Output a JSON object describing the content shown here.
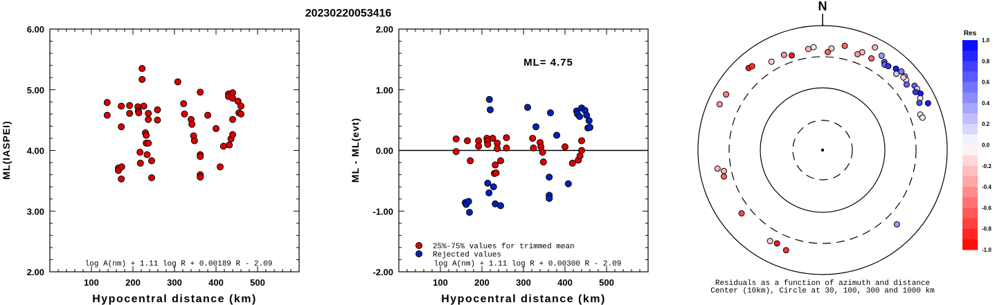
{
  "title": "20230220053416",
  "chart_data": [
    {
      "type": "scatter",
      "id": "left",
      "xlabel": "Hypocentral distance (km)",
      "ylabel": "ML(IASPEI)",
      "xlim": [
        0,
        600
      ],
      "ylim": [
        2.0,
        6.0
      ],
      "xticks": [
        "100",
        "200",
        "300",
        "400",
        "500"
      ],
      "yticks": [
        "2.00",
        "3.00",
        "4.00",
        "5.00",
        "6.00"
      ],
      "formula": "log A(nm) + 1.11 log R + 0.00189 R - 2.09",
      "series": [
        {
          "color": "#dd0000",
          "points": [
            [
              138,
              4.79
            ],
            [
              138,
              4.58
            ],
            [
              165,
              3.71
            ],
            [
              165,
              3.67
            ],
            [
              172,
              4.73
            ],
            [
              172,
              4.39
            ],
            [
              173,
              3.73
            ],
            [
              172,
              3.53
            ],
            [
              192,
              4.74
            ],
            [
              192,
              4.61
            ],
            [
              212,
              4.72
            ],
            [
              213,
              4.65
            ],
            [
              214,
              4.62
            ],
            [
              217,
              3.97
            ],
            [
              218,
              3.79
            ],
            [
              222,
              5.35
            ],
            [
              222,
              5.17
            ],
            [
              226,
              4.73
            ],
            [
              230,
              4.29
            ],
            [
              232,
              4.25
            ],
            [
              232,
              4.12
            ],
            [
              234,
              3.93
            ],
            [
              237,
              4.61
            ],
            [
              237,
              4.51
            ],
            [
              237,
              4.12
            ],
            [
              245,
              3.83
            ],
            [
              245,
              3.55
            ],
            [
              259,
              4.67
            ],
            [
              259,
              4.5
            ],
            [
              308,
              5.13
            ],
            [
              322,
              4.77
            ],
            [
              324,
              4.6
            ],
            [
              340,
              4.51
            ],
            [
              342,
              4.43
            ],
            [
              346,
              4.24
            ],
            [
              348,
              4.16
            ],
            [
              362,
              4.96
            ],
            [
              362,
              3.93
            ],
            [
              362,
              3.9
            ],
            [
              362,
              3.6
            ],
            [
              362,
              3.56
            ],
            [
              380,
              4.58
            ],
            [
              400,
              4.36
            ],
            [
              410,
              3.73
            ],
            [
              418,
              4.07
            ],
            [
              430,
              4.93
            ],
            [
              430,
              4.89
            ],
            [
              432,
              4.09
            ],
            [
              436,
              4.19
            ],
            [
              440,
              4.95
            ],
            [
              440,
              4.86
            ],
            [
              440,
              4.26
            ],
            [
              440,
              4.51
            ],
            [
              453,
              4.81
            ],
            [
              455,
              4.62
            ],
            [
              460,
              4.73
            ],
            [
              460,
              4.6
            ]
          ]
        }
      ]
    },
    {
      "type": "scatter",
      "id": "middle",
      "xlabel": "Hypocentral distance (km)",
      "ylabel": "ML - ML(evt)",
      "xlim": [
        0,
        600
      ],
      "ylim": [
        -2.0,
        2.0
      ],
      "xticks": [
        "100",
        "200",
        "300",
        "400",
        "500"
      ],
      "yticks": [
        "-2.00",
        "-1.00",
        "0.00",
        "1.00",
        "2.00"
      ],
      "annotation": "ML= 4.75",
      "formula": "log A(nm) + 1.11 log R + 0.00300 R - 2.09",
      "legend": [
        "25%-75% values for trimmed mean",
        "Rejected values"
      ],
      "series": [
        {
          "name": "25%-75% values for trimmed mean",
          "color": "#dd0000",
          "points": [
            [
              138,
              0.19
            ],
            [
              138,
              -0.02
            ],
            [
              165,
              0.16
            ],
            [
              172,
              -0.17
            ],
            [
              192,
              0.16
            ],
            [
              192,
              0.07
            ],
            [
              212,
              0.2
            ],
            [
              213,
              0.15
            ],
            [
              214,
              0.1
            ],
            [
              226,
              0.2
            ],
            [
              230,
              -0.38
            ],
            [
              232,
              -0.24
            ],
            [
              234,
              -0.37
            ],
            [
              237,
              0.12
            ],
            [
              237,
              0.03
            ],
            [
              245,
              -0.17
            ],
            [
              259,
              0.21
            ],
            [
              259,
              0.04
            ],
            [
              322,
              0.2
            ],
            [
              324,
              0.04
            ],
            [
              340,
              0.13
            ],
            [
              342,
              0.06
            ],
            [
              346,
              -0.03
            ],
            [
              348,
              -0.19
            ],
            [
              400,
              0.06
            ],
            [
              418,
              -0.21
            ],
            [
              432,
              -0.16
            ],
            [
              436,
              -0.09
            ],
            [
              440,
              0.16
            ],
            [
              440,
              0.0
            ]
          ]
        },
        {
          "name": "Rejected values",
          "color": "#0022bb",
          "points": [
            [
              160,
              -0.86
            ],
            [
              162,
              -0.89
            ],
            [
              168,
              -0.84
            ],
            [
              170,
              -1.02
            ],
            [
              214,
              -0.54
            ],
            [
              217,
              -0.7
            ],
            [
              218,
              0.84
            ],
            [
              220,
              0.67
            ],
            [
              228,
              -0.6
            ],
            [
              232,
              -0.88
            ],
            [
              245,
              -0.91
            ],
            [
              310,
              0.71
            ],
            [
              330,
              0.39
            ],
            [
              362,
              -0.44
            ],
            [
              362,
              -0.74
            ],
            [
              362,
              -0.79
            ],
            [
              365,
              0.62
            ],
            [
              380,
              0.25
            ],
            [
              408,
              -0.55
            ],
            [
              428,
              0.65
            ],
            [
              430,
              0.6
            ],
            [
              435,
              0.56
            ],
            [
              440,
              0.7
            ],
            [
              448,
              0.66
            ],
            [
              452,
              0.58
            ],
            [
              455,
              0.37
            ],
            [
              458,
              0.49
            ],
            [
              460,
              0.38
            ]
          ]
        }
      ]
    },
    {
      "type": "polar-scatter",
      "id": "azimuth",
      "north_label": "N",
      "caption_line1": "Residuals as a function of azimuth and distance",
      "caption_line2": "Center (10km), Circle at 30, 100, 300 and 1000 km",
      "colorbar_title": "Res",
      "colorbar_ticks": [
        "1.0",
        "0.8",
        "0.6",
        "0.4",
        "0.2",
        "0.0",
        "-0.2",
        "-0.4",
        "-0.6",
        "-0.8",
        "-1.0"
      ],
      "points_az_dist_res": [
        [
          12,
          500,
          -0.6
        ],
        [
          27,
          700,
          -0.3
        ],
        [
          32,
          600,
          0.4
        ],
        [
          28,
          450,
          -0.6
        ],
        [
          35,
          520,
          0.7
        ],
        [
          36,
          480,
          0.6
        ],
        [
          38,
          500,
          0.8
        ],
        [
          42,
          560,
          0.9
        ],
        [
          45,
          600,
          0.5
        ],
        [
          48,
          580,
          0.3
        ],
        [
          55,
          620,
          0.6
        ],
        [
          57,
          630,
          0.2
        ],
        [
          60,
          640,
          0.9
        ],
        [
          62,
          580,
          0.1
        ],
        [
          64,
          520,
          0.7
        ],
        [
          66,
          700,
          0.9
        ],
        [
          22,
          480,
          -0.3
        ],
        [
          20,
          420,
          -0.4
        ],
        [
          50,
          550,
          0.1
        ],
        [
          44,
          490,
          0.2
        ],
        [
          48,
          540,
          -0.2
        ],
        [
          70,
          450,
          0.1
        ],
        [
          72,
          470,
          0.05
        ],
        [
          135,
          470,
          0.4
        ],
        [
          200,
          500,
          -0.8
        ],
        [
          206,
          450,
          -0.9
        ],
        [
          210,
          470,
          -0.2
        ],
        [
          232,
          430,
          -0.7
        ],
        [
          258,
          400,
          -0.3
        ],
        [
          294,
          630,
          -0.4
        ],
        [
          300,
          600,
          -0.5
        ],
        [
          318,
          580,
          -0.9
        ],
        [
          320,
          560,
          -0.8
        ],
        [
          330,
          420,
          -0.2
        ],
        [
          338,
          430,
          -0.4
        ],
        [
          342,
          380,
          -0.9
        ],
        [
          352,
          420,
          -0.3
        ],
        [
          355,
          440,
          -0.1
        ],
        [
          5,
          420,
          -0.2
        ],
        [
          3,
          360,
          -0.6
        ],
        [
          255,
          420,
          -0.6
        ],
        [
          260,
          500,
          -0.3
        ],
        [
          52,
          500,
          0.6
        ],
        [
          58,
          560,
          0.8
        ]
      ]
    }
  ]
}
